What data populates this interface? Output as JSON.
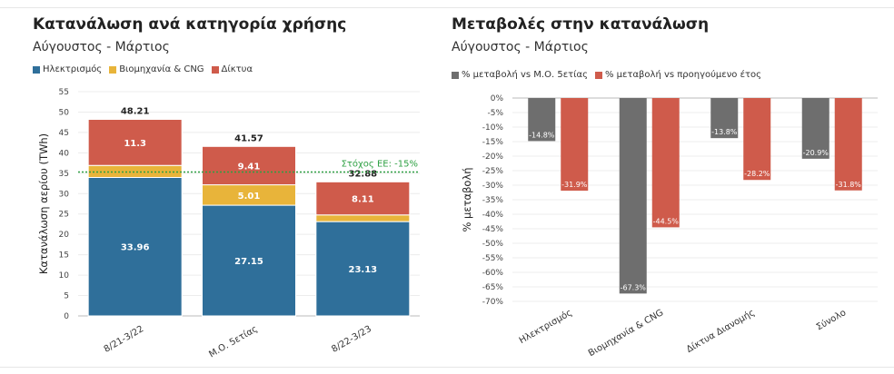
{
  "left": {
    "title": "Κατανάλωση ανά κατηγορία χρήσης",
    "subtitle": "Αύγουστος - Μάρτιος",
    "legend": [
      {
        "label": "Ηλεκτρισμός",
        "color": "#2f6f9a"
      },
      {
        "label": "Βιομηχανία & CNG",
        "color": "#e8b43a"
      },
      {
        "label": "Δίκτυα",
        "color": "#cf5b4b"
      }
    ]
  },
  "right": {
    "title": "Μεταβολές στην κατανάλωση",
    "subtitle": "Αύγουστος - Μάρτιος",
    "legend": [
      {
        "label": "% μεταβολή vs Μ.Ο. 5ετίας",
        "color": "#6e6e6e"
      },
      {
        "label": "% μεταβολή vs προηγούμενο έτος",
        "color": "#cf5b4b"
      }
    ]
  },
  "chart_data": [
    {
      "type": "bar",
      "stacked": true,
      "categories": [
        "8/21-3/22",
        "Μ.Ο. 5ετίας",
        "8/22-3/23"
      ],
      "series": [
        {
          "name": "Ηλεκτρισμός",
          "values": [
            33.96,
            27.15,
            23.13
          ],
          "color": "#2f6f9a"
        },
        {
          "name": "Βιομηχανία & CNG",
          "values": [
            2.95,
            5.01,
            1.64
          ],
          "color": "#e8b43a"
        },
        {
          "name": "Δίκτυα",
          "values": [
            11.3,
            9.41,
            8.11
          ],
          "color": "#cf5b4b"
        }
      ],
      "segment_labels": [
        [
          "33.96",
          "",
          "11.3"
        ],
        [
          "27.15",
          "5.01",
          "9.41"
        ],
        [
          "23.13",
          "",
          "8.11"
        ]
      ],
      "totals": [
        "48.21",
        "41.57",
        "32.88"
      ],
      "ylabel": "Κατανάλωση αερίου (TWh)",
      "ylim": [
        0,
        55
      ],
      "yticks": [
        "0",
        "5",
        "10",
        "15",
        "20",
        "25",
        "30",
        "35",
        "40",
        "45",
        "50",
        "55"
      ],
      "reference_line": {
        "value": 35.3,
        "label": "Στόχος ΕΕ: -15%",
        "color": "#2ea043"
      },
      "grid": true
    },
    {
      "type": "bar",
      "categories": [
        "Ηλεκτρισμός",
        "Βιομηχανία & CNG",
        "Δίκτυα Διανομής",
        "Σύνολο"
      ],
      "series": [
        {
          "name": "% μεταβολή vs Μ.Ο. 5ετίας",
          "values": [
            -14.8,
            -67.3,
            -13.8,
            -20.9
          ],
          "labels": [
            "-14.8%",
            "-67.3%",
            "-13.8%",
            "-20.9%"
          ],
          "color": "#6e6e6e"
        },
        {
          "name": "% μεταβολή vs προηγούμενο έτος",
          "values": [
            -31.9,
            -44.5,
            -28.2,
            -31.8
          ],
          "labels": [
            "-31.9%",
            "-44.5%",
            "-28.2%",
            "-31.8%"
          ],
          "color": "#cf5b4b"
        }
      ],
      "ylabel": "% μεταβολή",
      "ylim": [
        -70,
        0
      ],
      "yticks": [
        "0%",
        "-5%",
        "-10%",
        "-15%",
        "-20%",
        "-25%",
        "-30%",
        "-35%",
        "-40%",
        "-45%",
        "-50%",
        "-55%",
        "-60%",
        "-65%",
        "-70%"
      ],
      "grid": true
    }
  ]
}
